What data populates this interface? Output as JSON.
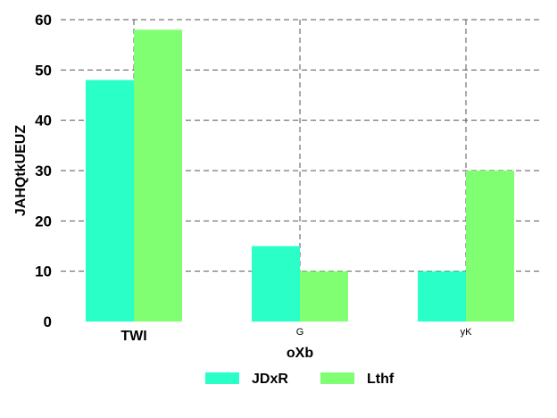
{
  "chart_data": {
    "type": "bar",
    "xlabel": "oXb",
    "ylabel": "JAHQtkUEUZ",
    "categories": [
      "TWI",
      "G",
      "yK"
    ],
    "series": [
      {
        "name": "JDxR",
        "values": [
          48,
          15,
          10
        ],
        "color": "#2affc8"
      },
      {
        "name": "Lthf",
        "values": [
          58,
          10,
          30
        ],
        "color": "#80ff72"
      }
    ],
    "ylim": [
      0,
      60
    ],
    "yticks": [
      0,
      10,
      20,
      30,
      40,
      50,
      60
    ],
    "grid": true,
    "grid_style": "dashed",
    "legend_position": "bottom-center"
  }
}
